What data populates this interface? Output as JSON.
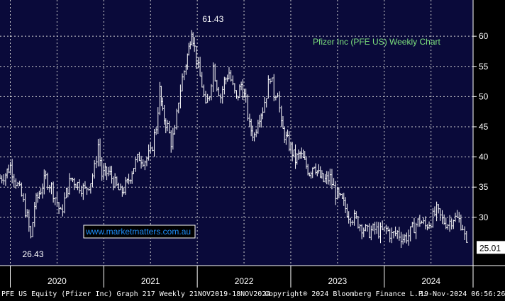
{
  "chart_data": {
    "type": "line",
    "title": "Pfizer Inc (PFE US) Weekly Chart",
    "series": [
      {
        "values": [
          [
            2019.89,
            36.5
          ],
          [
            2019.95,
            37.2
          ],
          [
            2020.0,
            38.5
          ],
          [
            2020.06,
            36.0
          ],
          [
            2020.12,
            33.5
          ],
          [
            2020.18,
            30.0
          ],
          [
            2020.22,
            26.43
          ],
          [
            2020.26,
            32.0
          ],
          [
            2020.31,
            34.0
          ],
          [
            2020.38,
            36.5
          ],
          [
            2020.44,
            35.0
          ],
          [
            2020.5,
            32.5
          ],
          [
            2020.54,
            30.5
          ],
          [
            2020.6,
            34.0
          ],
          [
            2020.65,
            36.5
          ],
          [
            2020.72,
            35.5
          ],
          [
            2020.8,
            34.5
          ],
          [
            2020.86,
            36.0
          ],
          [
            2020.9,
            38.0
          ],
          [
            2020.94,
            42.0
          ],
          [
            2020.98,
            37.0
          ],
          [
            2021.05,
            37.5
          ],
          [
            2021.12,
            35.5
          ],
          [
            2021.18,
            34.0
          ],
          [
            2021.25,
            35.5
          ],
          [
            2021.32,
            38.5
          ],
          [
            2021.38,
            40.0
          ],
          [
            2021.44,
            39.5
          ],
          [
            2021.5,
            40.5
          ],
          [
            2021.56,
            45.0
          ],
          [
            2021.6,
            51.0
          ],
          [
            2021.63,
            47.0
          ],
          [
            2021.68,
            45.0
          ],
          [
            2021.72,
            42.5
          ],
          [
            2021.76,
            44.0
          ],
          [
            2021.8,
            49.5
          ],
          [
            2021.84,
            53.0
          ],
          [
            2021.88,
            55.5
          ],
          [
            2021.91,
            58.0
          ],
          [
            2021.94,
            61.43
          ],
          [
            2021.97,
            58.0
          ],
          [
            2022.01,
            54.5
          ],
          [
            2022.05,
            52.0
          ],
          [
            2022.09,
            48.0
          ],
          [
            2022.13,
            50.5
          ],
          [
            2022.17,
            55.0
          ],
          [
            2022.21,
            52.0
          ],
          [
            2022.25,
            50.0
          ],
          [
            2022.29,
            52.5
          ],
          [
            2022.34,
            54.0
          ],
          [
            2022.38,
            51.5
          ],
          [
            2022.42,
            49.5
          ],
          [
            2022.47,
            52.0
          ],
          [
            2022.52,
            49.0
          ],
          [
            2022.56,
            45.0
          ],
          [
            2022.61,
            43.5
          ],
          [
            2022.65,
            46.5
          ],
          [
            2022.7,
            48.0
          ],
          [
            2022.74,
            50.5
          ],
          [
            2022.78,
            53.5
          ],
          [
            2022.82,
            50.5
          ],
          [
            2022.86,
            51.0
          ],
          [
            2022.9,
            45.0
          ],
          [
            2022.95,
            43.0
          ],
          [
            2023.0,
            41.5
          ],
          [
            2023.05,
            39.5
          ],
          [
            2023.1,
            40.5
          ],
          [
            2023.15,
            39.0
          ],
          [
            2023.2,
            37.5
          ],
          [
            2023.25,
            39.0
          ],
          [
            2023.3,
            37.0
          ],
          [
            2023.35,
            36.0
          ],
          [
            2023.42,
            36.5
          ],
          [
            2023.48,
            34.0
          ],
          [
            2023.55,
            32.5
          ],
          [
            2023.62,
            30.5
          ],
          [
            2023.7,
            29.5
          ],
          [
            2023.76,
            28.5
          ],
          [
            2023.82,
            27.5
          ],
          [
            2023.9,
            28.0
          ],
          [
            2023.96,
            27.5
          ],
          [
            2024.02,
            28.0
          ],
          [
            2024.08,
            27.0
          ],
          [
            2024.14,
            27.5
          ],
          [
            2024.2,
            26.5
          ],
          [
            2024.26,
            27.0
          ],
          [
            2024.32,
            28.5
          ],
          [
            2024.38,
            29.5
          ],
          [
            2024.44,
            28.5
          ],
          [
            2024.5,
            29.5
          ],
          [
            2024.56,
            31.0
          ],
          [
            2024.62,
            29.5
          ],
          [
            2024.68,
            29.0
          ],
          [
            2024.74,
            30.0
          ],
          [
            2024.8,
            29.5
          ],
          [
            2024.84,
            28.5
          ],
          [
            2024.88,
            25.01
          ]
        ]
      }
    ],
    "x_ticks": [
      "2020",
      "2021",
      "2022",
      "2023",
      "2024"
    ],
    "x_tick_values": [
      2020.5,
      2021.5,
      2022.5,
      2023.5,
      2024.5
    ],
    "x_boundaries": [
      2020.0,
      2021.0,
      2022.0,
      2023.0,
      2024.0
    ],
    "y_ticks": [
      30,
      35,
      40,
      45,
      50,
      55,
      60
    ],
    "ylim": [
      22,
      66
    ],
    "xlim": [
      2019.89,
      2024.95
    ],
    "grid": true,
    "annotations": [
      {
        "text": "61.43",
        "x": 2021.94,
        "y": 61.43
      },
      {
        "text": "26.43",
        "x": 2020.22,
        "y": 26.43
      }
    ],
    "last_price_label": "25.01",
    "watermark": "www.marketmatters.com.au"
  },
  "colors": {
    "background": "#000000",
    "plot_bg": "#0a0a3a",
    "grid": "#d0d0d0",
    "line": "#ffffff",
    "title": "#7de07d",
    "watermark_border": "#ffffff",
    "watermark_text": "#1e90ff"
  },
  "footer": {
    "left": "PFE US Equity (Pfizer Inc) Graph 217  Weekly 21NOV2019-18NOV2024",
    "middle": "Copyright® 2024 Bloomberg Finance L.P.",
    "right": "19-Nov-2024 06:56:26"
  }
}
